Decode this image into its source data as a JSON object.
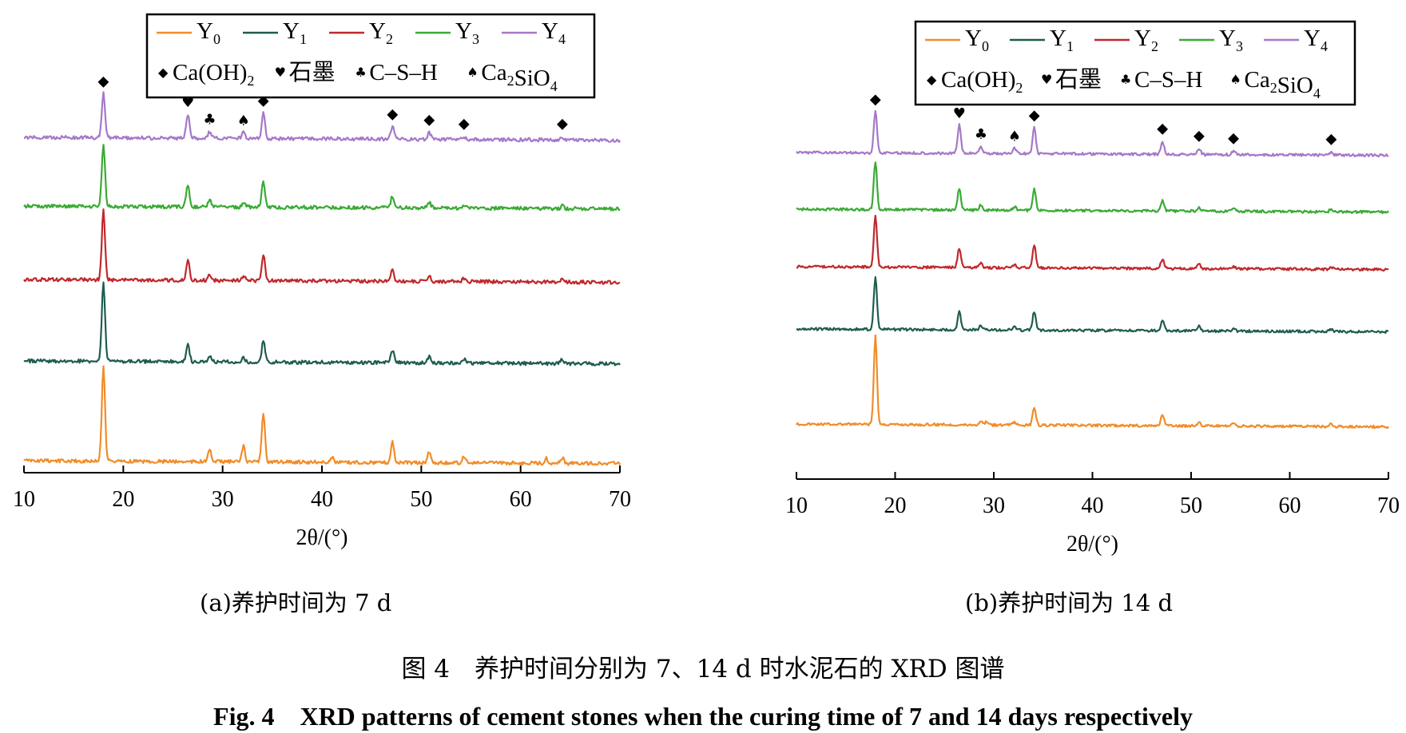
{
  "legend": {
    "series": [
      {
        "base": "Y",
        "sub": "0",
        "color": "#f28c28"
      },
      {
        "base": "Y",
        "sub": "1",
        "color": "#1f5c4f"
      },
      {
        "base": "Y",
        "sub": "2",
        "color": "#c0282c"
      },
      {
        "base": "Y",
        "sub": "3",
        "color": "#3aaa35"
      },
      {
        "base": "Y",
        "sub": "4",
        "color": "#a678c8"
      }
    ],
    "phases": [
      {
        "symbol": "◆",
        "parts": [
          {
            "t": "Ca(OH)"
          },
          {
            "t": "2",
            "sub": true
          }
        ]
      },
      {
        "symbol": "♥",
        "parts": [
          {
            "t": "石墨"
          }
        ]
      },
      {
        "symbol": "♣",
        "parts": [
          {
            "t": "C–S–H"
          }
        ]
      },
      {
        "symbol": "♠",
        "parts": [
          {
            "t": "Ca"
          },
          {
            "t": "2",
            "sub": true
          },
          {
            "t": "SiO"
          },
          {
            "t": "4",
            "sub": true
          }
        ]
      }
    ]
  },
  "chart_data": [
    {
      "type": "line",
      "panel": "a",
      "caption": "(a)养护时间为 7 d",
      "xlabel": "2θ/(°)",
      "xlim": [
        10,
        70
      ],
      "x_ticks": [
        "10",
        "20",
        "30",
        "40",
        "50",
        "60",
        "70"
      ],
      "y_axis_shown": false,
      "stack_order_bottom_to_top": [
        "Y0",
        "Y1",
        "Y2",
        "Y3",
        "Y4"
      ],
      "series": [
        {
          "name": "Y0",
          "color": "#f28c28",
          "peaks": [
            {
              "x": 18.0,
              "h": 100
            },
            {
              "x": 28.7,
              "h": 12
            },
            {
              "x": 32.1,
              "h": 16
            },
            {
              "x": 34.1,
              "h": 52
            },
            {
              "x": 41.0,
              "h": 5
            },
            {
              "x": 47.1,
              "h": 22
            },
            {
              "x": 50.8,
              "h": 12
            },
            {
              "x": 54.3,
              "h": 7
            },
            {
              "x": 62.6,
              "h": 5
            },
            {
              "x": 64.2,
              "h": 6
            }
          ]
        },
        {
          "name": "Y1",
          "color": "#1f5c4f",
          "peaks": [
            {
              "x": 18.0,
              "h": 82
            },
            {
              "x": 26.5,
              "h": 19
            },
            {
              "x": 28.7,
              "h": 7
            },
            {
              "x": 32.1,
              "h": 5
            },
            {
              "x": 34.1,
              "h": 23
            },
            {
              "x": 47.1,
              "h": 13
            },
            {
              "x": 50.8,
              "h": 7
            },
            {
              "x": 54.3,
              "h": 4
            },
            {
              "x": 64.2,
              "h": 4
            }
          ]
        },
        {
          "name": "Y2",
          "color": "#c0282c",
          "peaks": [
            {
              "x": 18.0,
              "h": 72
            },
            {
              "x": 26.5,
              "h": 22
            },
            {
              "x": 28.7,
              "h": 6
            },
            {
              "x": 32.1,
              "h": 5
            },
            {
              "x": 34.1,
              "h": 27
            },
            {
              "x": 47.1,
              "h": 12
            },
            {
              "x": 50.8,
              "h": 6
            },
            {
              "x": 54.3,
              "h": 3
            },
            {
              "x": 64.2,
              "h": 3
            }
          ]
        },
        {
          "name": "Y3",
          "color": "#3aaa35",
          "peaks": [
            {
              "x": 18.0,
              "h": 65
            },
            {
              "x": 26.5,
              "h": 23
            },
            {
              "x": 28.7,
              "h": 7
            },
            {
              "x": 32.1,
              "h": 5
            },
            {
              "x": 34.1,
              "h": 27
            },
            {
              "x": 47.1,
              "h": 12
            },
            {
              "x": 50.8,
              "h": 6
            },
            {
              "x": 54.3,
              "h": 3
            },
            {
              "x": 64.2,
              "h": 3
            }
          ]
        },
        {
          "name": "Y4",
          "color": "#a678c8",
          "peaks": [
            {
              "x": 18.0,
              "h": 47
            },
            {
              "x": 26.5,
              "h": 25
            },
            {
              "x": 28.7,
              "h": 7
            },
            {
              "x": 32.1,
              "h": 6
            },
            {
              "x": 34.1,
              "h": 27
            },
            {
              "x": 47.1,
              "h": 13
            },
            {
              "x": 50.8,
              "h": 7
            },
            {
              "x": 54.3,
              "h": 3
            },
            {
              "x": 64.2,
              "h": 3
            }
          ]
        }
      ],
      "markers": [
        {
          "symbol": "◆",
          "x": 18.0
        },
        {
          "symbol": "♥",
          "x": 26.5
        },
        {
          "symbol": "♣",
          "x": 28.7
        },
        {
          "symbol": "♠",
          "x": 32.1
        },
        {
          "symbol": "◆",
          "x": 34.1
        },
        {
          "symbol": "◆",
          "x": 47.1
        },
        {
          "symbol": "◆",
          "x": 50.8
        },
        {
          "symbol": "◆",
          "x": 54.3
        },
        {
          "symbol": "◆",
          "x": 64.2
        }
      ]
    },
    {
      "type": "line",
      "panel": "b",
      "caption": "(b)养护时间为 14 d",
      "xlabel": "2θ/(°)",
      "xlim": [
        10,
        70
      ],
      "x_ticks": [
        "10",
        "20",
        "30",
        "40",
        "50",
        "60",
        "70"
      ],
      "y_axis_shown": false,
      "stack_order_bottom_to_top": [
        "Y0",
        "Y1",
        "Y2",
        "Y3",
        "Y4"
      ],
      "series": [
        {
          "name": "Y0",
          "color": "#f28c28",
          "peaks": [
            {
              "x": 18.0,
              "h": 100
            },
            {
              "x": 28.7,
              "h": 5
            },
            {
              "x": 29.3,
              "h": 4
            },
            {
              "x": 32.1,
              "h": 3
            },
            {
              "x": 34.1,
              "h": 21
            },
            {
              "x": 47.1,
              "h": 13
            },
            {
              "x": 50.8,
              "h": 5
            },
            {
              "x": 54.3,
              "h": 3
            },
            {
              "x": 64.2,
              "h": 3
            }
          ]
        },
        {
          "name": "Y1",
          "color": "#1f5c4f",
          "peaks": [
            {
              "x": 18.0,
              "h": 60
            },
            {
              "x": 26.5,
              "h": 22
            },
            {
              "x": 28.7,
              "h": 5
            },
            {
              "x": 32.1,
              "h": 4
            },
            {
              "x": 34.1,
              "h": 21
            },
            {
              "x": 47.1,
              "h": 11
            },
            {
              "x": 50.8,
              "h": 5
            },
            {
              "x": 54.3,
              "h": 3
            },
            {
              "x": 64.2,
              "h": 3
            }
          ]
        },
        {
          "name": "Y2",
          "color": "#c0282c",
          "peaks": [
            {
              "x": 18.0,
              "h": 58
            },
            {
              "x": 26.5,
              "h": 22
            },
            {
              "x": 28.7,
              "h": 5
            },
            {
              "x": 32.1,
              "h": 4
            },
            {
              "x": 34.1,
              "h": 26
            },
            {
              "x": 47.1,
              "h": 11
            },
            {
              "x": 50.8,
              "h": 5
            },
            {
              "x": 54.3,
              "h": 3
            },
            {
              "x": 64.2,
              "h": 3
            }
          ]
        },
        {
          "name": "Y3",
          "color": "#3aaa35",
          "peaks": [
            {
              "x": 18.0,
              "h": 55
            },
            {
              "x": 26.5,
              "h": 25
            },
            {
              "x": 28.7,
              "h": 6
            },
            {
              "x": 32.1,
              "h": 4
            },
            {
              "x": 34.1,
              "h": 25
            },
            {
              "x": 47.1,
              "h": 12
            },
            {
              "x": 50.8,
              "h": 5
            },
            {
              "x": 54.3,
              "h": 3
            },
            {
              "x": 64.2,
              "h": 3
            }
          ]
        },
        {
          "name": "Y4",
          "color": "#a678c8",
          "peaks": [
            {
              "x": 18.0,
              "h": 48
            },
            {
              "x": 26.5,
              "h": 32
            },
            {
              "x": 28.7,
              "h": 8
            },
            {
              "x": 32.1,
              "h": 6
            },
            {
              "x": 34.1,
              "h": 30
            },
            {
              "x": 47.1,
              "h": 15
            },
            {
              "x": 50.8,
              "h": 7
            },
            {
              "x": 54.3,
              "h": 4
            },
            {
              "x": 64.2,
              "h": 3
            }
          ]
        }
      ],
      "markers": [
        {
          "symbol": "◆",
          "x": 18.0
        },
        {
          "symbol": "♥",
          "x": 26.5
        },
        {
          "symbol": "♣",
          "x": 28.7
        },
        {
          "symbol": "♠",
          "x": 32.1
        },
        {
          "symbol": "◆",
          "x": 34.1
        },
        {
          "symbol": "◆",
          "x": 47.1
        },
        {
          "symbol": "◆",
          "x": 50.8
        },
        {
          "symbol": "◆",
          "x": 54.3
        },
        {
          "symbol": "◆",
          "x": 64.2
        }
      ]
    }
  ],
  "figure_caption_cn": "图 4　养护时间分别为 7、14 d 时水泥石的 XRD 图谱",
  "figure_caption_en": "Fig. 4　XRD patterns of cement stones when the curing time of 7 and 14 days respectively"
}
